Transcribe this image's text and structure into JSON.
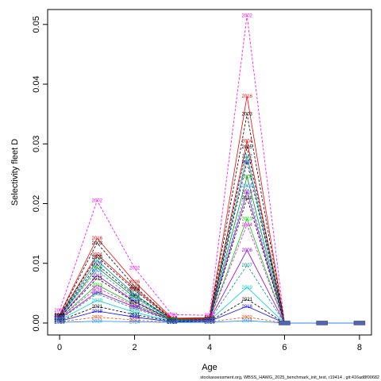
{
  "chart_data": {
    "type": "line",
    "xlabel": "Age",
    "ylabel": "Selectivity fleet D",
    "footer": "stockassessment.org, WBSS_HAWG_2025_benchmark_init_test, r19414 , git:416ad8f00682",
    "xlim": [
      -0.32,
      8.32
    ],
    "ylim": [
      -0.002,
      0.0525
    ],
    "x": [
      0,
      1,
      2,
      3,
      4,
      5,
      6,
      7,
      8
    ],
    "xticks": [
      0,
      2,
      4,
      6,
      8
    ],
    "yticks": [
      0.0,
      0.01,
      0.02,
      0.03,
      0.04,
      0.05
    ],
    "ytick_labels": [
      "0.00",
      "0.01",
      "0.02",
      "0.03",
      "0.04",
      "0.05"
    ],
    "grid": false,
    "series": [
      {
        "name": "2002",
        "color": "#ff00ff",
        "values": [
          0.0021,
          0.0205,
          0.0092,
          0.0014,
          0.0013,
          0.0515,
          0.0,
          0.0,
          0.0
        ]
      },
      {
        "name": "2016",
        "color": "#ff0000",
        "values": [
          0.0014,
          0.0142,
          0.0069,
          0.0008,
          0.0009,
          0.038,
          0.0,
          0.0,
          0.0
        ]
      },
      {
        "name": "2003",
        "color": "#000000",
        "values": [
          0.0013,
          0.0134,
          0.0061,
          0.0007,
          0.0008,
          0.035,
          0.0,
          0.0,
          0.0
        ]
      },
      {
        "name": "2004",
        "color": "#ff0000",
        "values": [
          0.0012,
          0.0115,
          0.0058,
          0.0007,
          0.0008,
          0.0305,
          0.0,
          0.0,
          0.0
        ]
      },
      {
        "name": "2005",
        "color": "#000000",
        "values": [
          0.0012,
          0.0111,
          0.0055,
          0.0006,
          0.0007,
          0.0295,
          0.0,
          0.0,
          0.0
        ]
      },
      {
        "name": "2012",
        "color": "#008b8b",
        "values": [
          0.0011,
          0.0105,
          0.0048,
          0.0006,
          0.0007,
          0.028,
          0.0,
          0.0,
          0.0
        ]
      },
      {
        "name": "2007",
        "color": "#000080",
        "values": [
          0.0011,
          0.0098,
          0.0046,
          0.0006,
          0.0007,
          0.027,
          0.0,
          0.0,
          0.0
        ]
      },
      {
        "name": "2008",
        "color": "#009900",
        "values": [
          0.001,
          0.0093,
          0.0043,
          0.0006,
          0.0007,
          0.0245,
          0.0,
          0.0,
          0.0
        ]
      },
      {
        "name": "2009",
        "color": "#1e90ff",
        "values": [
          0.001,
          0.0088,
          0.0039,
          0.0005,
          0.0006,
          0.023,
          0.0,
          0.0,
          0.0
        ]
      },
      {
        "name": "2010",
        "color": "#9400d3",
        "values": [
          0.0009,
          0.008,
          0.0036,
          0.0005,
          0.0006,
          0.022,
          0.0,
          0.0,
          0.0
        ]
      },
      {
        "name": "2011",
        "color": "#000000",
        "values": [
          0.0009,
          0.0075,
          0.0035,
          0.0005,
          0.0006,
          0.021,
          0.0,
          0.0,
          0.0
        ]
      },
      {
        "name": "2013",
        "color": "#00cc00",
        "values": [
          0.0008,
          0.0064,
          0.0031,
          0.0005,
          0.0005,
          0.0175,
          0.0,
          0.0,
          0.0
        ]
      },
      {
        "name": "2014",
        "color": "#ff00ff",
        "values": [
          0.0008,
          0.0059,
          0.0029,
          0.0004,
          0.0005,
          0.0165,
          0.0,
          0.0,
          0.0
        ]
      },
      {
        "name": "2006",
        "color": "#9400d3",
        "values": [
          0.0007,
          0.0052,
          0.0027,
          0.0004,
          0.0005,
          0.0122,
          0.0,
          0.0,
          0.0
        ]
      },
      {
        "name": "2007",
        "color": "#008b8b",
        "values": [
          0.0006,
          0.0049,
          0.0024,
          0.0004,
          0.0004,
          0.0097,
          0.0,
          0.0,
          0.0
        ]
      },
      {
        "name": "2019",
        "color": "#00ced1",
        "values": [
          0.0005,
          0.0038,
          0.0018,
          0.0003,
          0.0004,
          0.006,
          0.0,
          0.0,
          0.0
        ]
      },
      {
        "name": "2021",
        "color": "#000000",
        "values": [
          0.0004,
          0.0028,
          0.0014,
          0.0003,
          0.0003,
          0.004,
          0.0,
          0.0,
          0.0
        ]
      },
      {
        "name": "2018",
        "color": "#0000ff",
        "values": [
          0.0003,
          0.002,
          0.001,
          0.0002,
          0.0003,
          0.0028,
          0.0,
          0.0,
          0.0
        ]
      },
      {
        "name": "2022",
        "color": "#ff4500",
        "values": [
          0.0002,
          0.001,
          0.0005,
          0.0001,
          0.0002,
          0.001,
          0.0,
          0.0,
          0.0
        ]
      },
      {
        "name": "2024",
        "color": "#1e90ff",
        "values": [
          0.0001,
          0.0003,
          0.0002,
          0.0001,
          0.0001,
          0.0004,
          0.0,
          0.0,
          0.0
        ]
      }
    ]
  }
}
